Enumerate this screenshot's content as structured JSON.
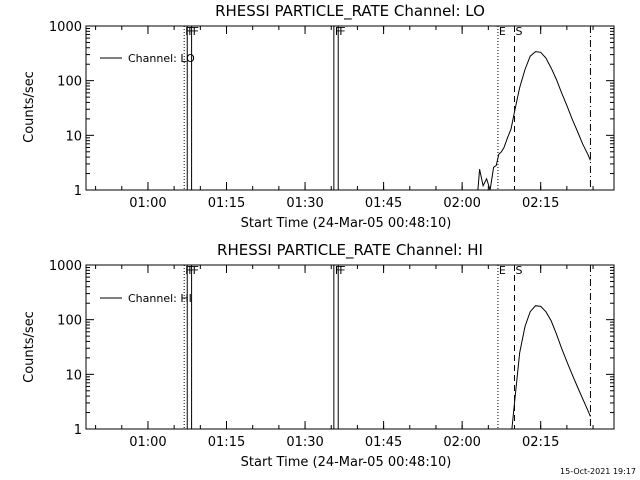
{
  "footer": {
    "timestamp": "15-Oct-2021 19:17"
  },
  "chart_data": [
    {
      "type": "line",
      "title": "RHESSI PARTICLE_RATE Channel: LO",
      "xlabel": "Start Time (24-Mar-05 00:48:10)",
      "ylabel": "Counts/sec",
      "legend": {
        "entry": "Channel: LO",
        "placement": "top-left"
      },
      "scale_y": "log",
      "xlim": [
        "00:48:10",
        "02:29:00"
      ],
      "ylim": [
        1,
        1000
      ],
      "x_ticks": [
        "01:00",
        "01:15",
        "01:30",
        "01:45",
        "02:00",
        "02:15"
      ],
      "y_ticks": [
        "1",
        "10",
        "100",
        "1000"
      ],
      "markers": [
        {
          "label": "F",
          "time": "01:06:55",
          "style": "dotted"
        },
        {
          "label": "F",
          "time": "01:07:30",
          "style": "solid"
        },
        {
          "label": "F",
          "time": "01:08:20",
          "style": "solid"
        },
        {
          "label": "F",
          "time": "01:35:30",
          "style": "solid"
        },
        {
          "label": "F",
          "time": "01:36:20",
          "style": "solid"
        },
        {
          "label": "E",
          "time": "02:06:50",
          "style": "dotted"
        },
        {
          "label": "S",
          "time": "02:10:00",
          "style": "dashed"
        },
        {
          "label": "",
          "time": "02:24:30",
          "style": "dashdot"
        }
      ],
      "series": [
        {
          "x": [
            "02:01:00",
            "02:03:00",
            "02:03:20",
            "02:04:00",
            "02:04:40",
            "02:05:20",
            "02:06:00",
            "02:06:30",
            "02:07:00",
            "02:07:30",
            "02:08:00",
            "02:08:40",
            "02:09:20",
            "02:10:00",
            "02:11:00",
            "02:12:00",
            "02:13:00",
            "02:14:00",
            "02:15:00",
            "02:16:00",
            "02:17:00",
            "02:18:00",
            "02:19:00",
            "02:20:00",
            "02:21:00",
            "02:22:00",
            "02:23:00",
            "02:24:00",
            "02:24:30"
          ],
          "y": [
            1,
            1,
            2.4,
            1.2,
            1.6,
            1,
            2.6,
            2.8,
            4.5,
            5,
            6,
            9,
            13,
            27,
            75,
            160,
            280,
            340,
            330,
            260,
            170,
            105,
            60,
            35,
            20,
            12,
            7,
            4.5,
            3.5
          ]
        }
      ]
    },
    {
      "type": "line",
      "title": "RHESSI PARTICLE_RATE Channel: HI",
      "xlabel": "Start Time (24-Mar-05 00:48:10)",
      "ylabel": "Counts/sec",
      "legend": {
        "entry": "Channel: HI",
        "placement": "top-left"
      },
      "scale_y": "log",
      "xlim": [
        "00:48:10",
        "02:29:00"
      ],
      "ylim": [
        1,
        1000
      ],
      "x_ticks": [
        "01:00",
        "01:15",
        "01:30",
        "01:45",
        "02:00",
        "02:15"
      ],
      "y_ticks": [
        "1",
        "10",
        "100",
        "1000"
      ],
      "markers": [
        {
          "label": "F",
          "time": "01:06:55",
          "style": "dotted"
        },
        {
          "label": "F",
          "time": "01:07:30",
          "style": "solid"
        },
        {
          "label": "F",
          "time": "01:08:20",
          "style": "solid"
        },
        {
          "label": "F",
          "time": "01:35:30",
          "style": "solid"
        },
        {
          "label": "F",
          "time": "01:36:20",
          "style": "solid"
        },
        {
          "label": "E",
          "time": "02:06:50",
          "style": "dotted"
        },
        {
          "label": "S",
          "time": "02:10:00",
          "style": "dashed"
        },
        {
          "label": "",
          "time": "02:24:30",
          "style": "dashdot"
        }
      ],
      "series": [
        {
          "x": [
            "02:09:30",
            "02:10:00",
            "02:11:00",
            "02:12:00",
            "02:13:00",
            "02:14:00",
            "02:15:00",
            "02:16:00",
            "02:17:00",
            "02:18:00",
            "02:19:00",
            "02:20:00",
            "02:21:00",
            "02:22:00",
            "02:23:00",
            "02:24:00",
            "02:24:30"
          ],
          "y": [
            1,
            3,
            25,
            75,
            140,
            180,
            175,
            140,
            95,
            55,
            30,
            17,
            10,
            6,
            3.6,
            2.2,
            1.7
          ]
        }
      ]
    }
  ]
}
